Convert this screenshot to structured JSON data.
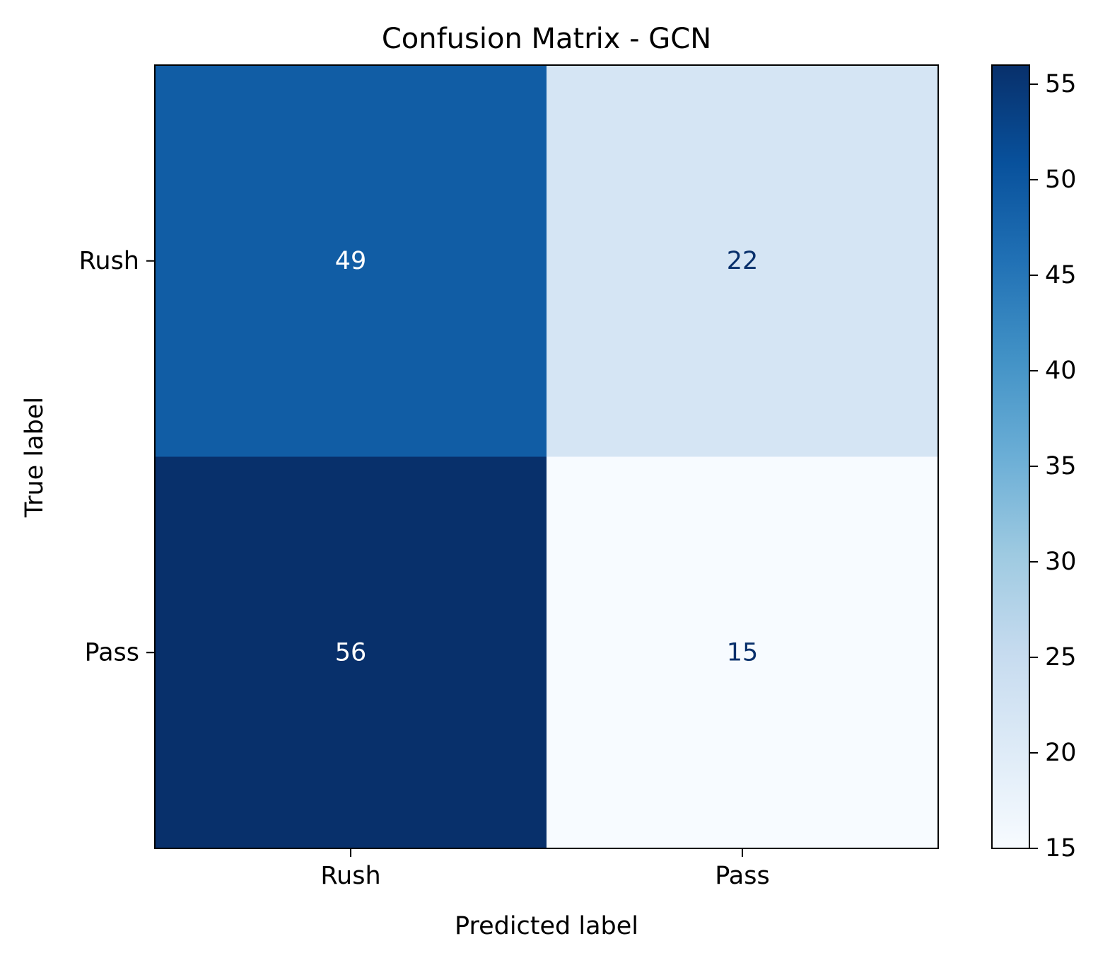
{
  "chart_data": {
    "type": "heatmap",
    "title": "Confusion Matrix - GCN",
    "xlabel": "Predicted label",
    "ylabel": "True label",
    "x_categories": [
      "Rush",
      "Pass"
    ],
    "y_categories": [
      "Rush",
      "Pass"
    ],
    "values": [
      [
        49,
        22
      ],
      [
        56,
        15
      ]
    ],
    "colormap": "Blues",
    "colorbar": {
      "range": [
        15,
        56
      ],
      "ticks": [
        15,
        20,
        25,
        30,
        35,
        40,
        45,
        50,
        55
      ]
    },
    "grid": false,
    "colors": {
      "low": "#f7fbff",
      "high": "#08306b",
      "text_dark_cell": "#ffffff",
      "text_light_cell": "#08306b"
    }
  }
}
